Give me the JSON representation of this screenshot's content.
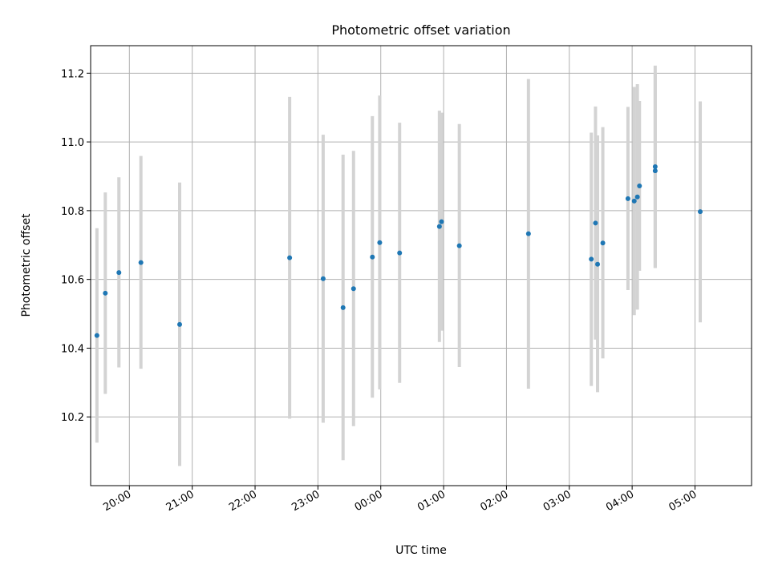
{
  "chart_data": {
    "type": "scatter",
    "title": "Photometric offset variation",
    "xlabel": "UTC time",
    "ylabel": "Photometric offset",
    "x_ticks": [
      "20:00",
      "21:00",
      "22:00",
      "23:00",
      "00:00",
      "01:00",
      "02:00",
      "03:00",
      "04:00",
      "05:00"
    ],
    "y_ticks": [
      "10.2",
      "10.4",
      "10.6",
      "10.8",
      "11.0",
      "11.2"
    ],
    "xlim": [
      "19:23",
      "05:54"
    ],
    "ylim": [
      10.0,
      11.28
    ],
    "grid": true,
    "colors": {
      "points": "#1f77b4",
      "error_bars": "#d3d3d3",
      "grid": "#b0b0b0"
    },
    "points": [
      {
        "x": "19:29",
        "y": 10.437,
        "ylo": 10.125,
        "yhi": 10.749
      },
      {
        "x": "19:37",
        "y": 10.56,
        "ylo": 10.267,
        "yhi": 10.853
      },
      {
        "x": "19:50",
        "y": 10.62,
        "ylo": 10.344,
        "yhi": 10.897
      },
      {
        "x": "20:11",
        "y": 10.649,
        "ylo": 10.34,
        "yhi": 10.959
      },
      {
        "x": "20:48",
        "y": 10.469,
        "ylo": 10.057,
        "yhi": 10.882
      },
      {
        "x": "22:33",
        "y": 10.663,
        "ylo": 10.195,
        "yhi": 11.131
      },
      {
        "x": "23:05",
        "y": 10.602,
        "ylo": 10.183,
        "yhi": 11.021
      },
      {
        "x": "23:24",
        "y": 10.518,
        "ylo": 10.074,
        "yhi": 10.963
      },
      {
        "x": "23:34",
        "y": 10.573,
        "ylo": 10.173,
        "yhi": 10.974
      },
      {
        "x": "23:52",
        "y": 10.665,
        "ylo": 10.256,
        "yhi": 11.075
      },
      {
        "x": "23:59",
        "y": 10.707,
        "ylo": 10.28,
        "yhi": 11.135
      },
      {
        "x": "00:18",
        "y": 10.677,
        "ylo": 10.299,
        "yhi": 11.056
      },
      {
        "x": "00:56",
        "y": 10.754,
        "ylo": 10.418,
        "yhi": 11.091
      },
      {
        "x": "00:58",
        "y": 10.768,
        "ylo": 10.451,
        "yhi": 11.085
      },
      {
        "x": "01:15",
        "y": 10.698,
        "ylo": 10.345,
        "yhi": 11.052
      },
      {
        "x": "02:21",
        "y": 10.733,
        "ylo": 10.282,
        "yhi": 11.183
      },
      {
        "x": "03:21",
        "y": 10.659,
        "ylo": 10.29,
        "yhi": 11.027
      },
      {
        "x": "03:25",
        "y": 10.764,
        "ylo": 10.425,
        "yhi": 11.103
      },
      {
        "x": "03:27",
        "y": 10.644,
        "ylo": 10.272,
        "yhi": 11.019
      },
      {
        "x": "03:32",
        "y": 10.706,
        "ylo": 10.37,
        "yhi": 11.043
      },
      {
        "x": "03:56",
        "y": 10.835,
        "ylo": 10.569,
        "yhi": 11.102
      },
      {
        "x": "04:02",
        "y": 10.828,
        "ylo": 10.496,
        "yhi": 11.16
      },
      {
        "x": "04:05",
        "y": 10.84,
        "ylo": 10.512,
        "yhi": 11.168
      },
      {
        "x": "04:07",
        "y": 10.872,
        "ylo": 10.625,
        "yhi": 11.119
      },
      {
        "x": "04:22",
        "y": 10.916,
        "ylo": 10.633,
        "yhi": 11.199
      },
      {
        "x": "04:22",
        "y": 10.928,
        "ylo": 10.634,
        "yhi": 11.222
      },
      {
        "x": "05:05",
        "y": 10.797,
        "ylo": 10.475,
        "yhi": 11.118
      }
    ]
  }
}
